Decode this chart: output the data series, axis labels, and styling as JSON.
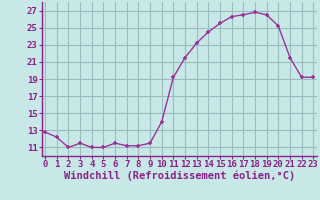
{
  "x": [
    0,
    1,
    2,
    3,
    4,
    5,
    6,
    7,
    8,
    9,
    10,
    11,
    12,
    13,
    14,
    15,
    16,
    17,
    18,
    19,
    20,
    21,
    22,
    23
  ],
  "y": [
    12.8,
    12.2,
    11.0,
    11.5,
    11.0,
    11.0,
    11.5,
    11.2,
    11.2,
    11.5,
    14.0,
    19.2,
    21.5,
    23.2,
    24.5,
    25.5,
    26.3,
    26.5,
    26.8,
    26.5,
    25.2,
    21.5,
    19.2,
    19.2
  ],
  "line_color": "#993399",
  "marker": "+",
  "bg_color": "#c8e8e8",
  "grid_color": "#9bbcbc",
  "xlabel": "Windchill (Refroidissement éolien,°C)",
  "yticks": [
    11,
    13,
    15,
    17,
    19,
    21,
    23,
    25,
    27
  ],
  "xticks": [
    0,
    1,
    2,
    3,
    4,
    5,
    6,
    7,
    8,
    9,
    10,
    11,
    12,
    13,
    14,
    15,
    16,
    17,
    18,
    19,
    20,
    21,
    22,
    23
  ],
  "ylim": [
    10.0,
    28.0
  ],
  "xlim": [
    -0.3,
    23.3
  ],
  "tick_label_color": "#882288",
  "xlabel_color": "#882288",
  "label_fontsize": 7.5,
  "tick_fontsize": 6.5,
  "linewidth": 1.0,
  "markersize": 3.5
}
